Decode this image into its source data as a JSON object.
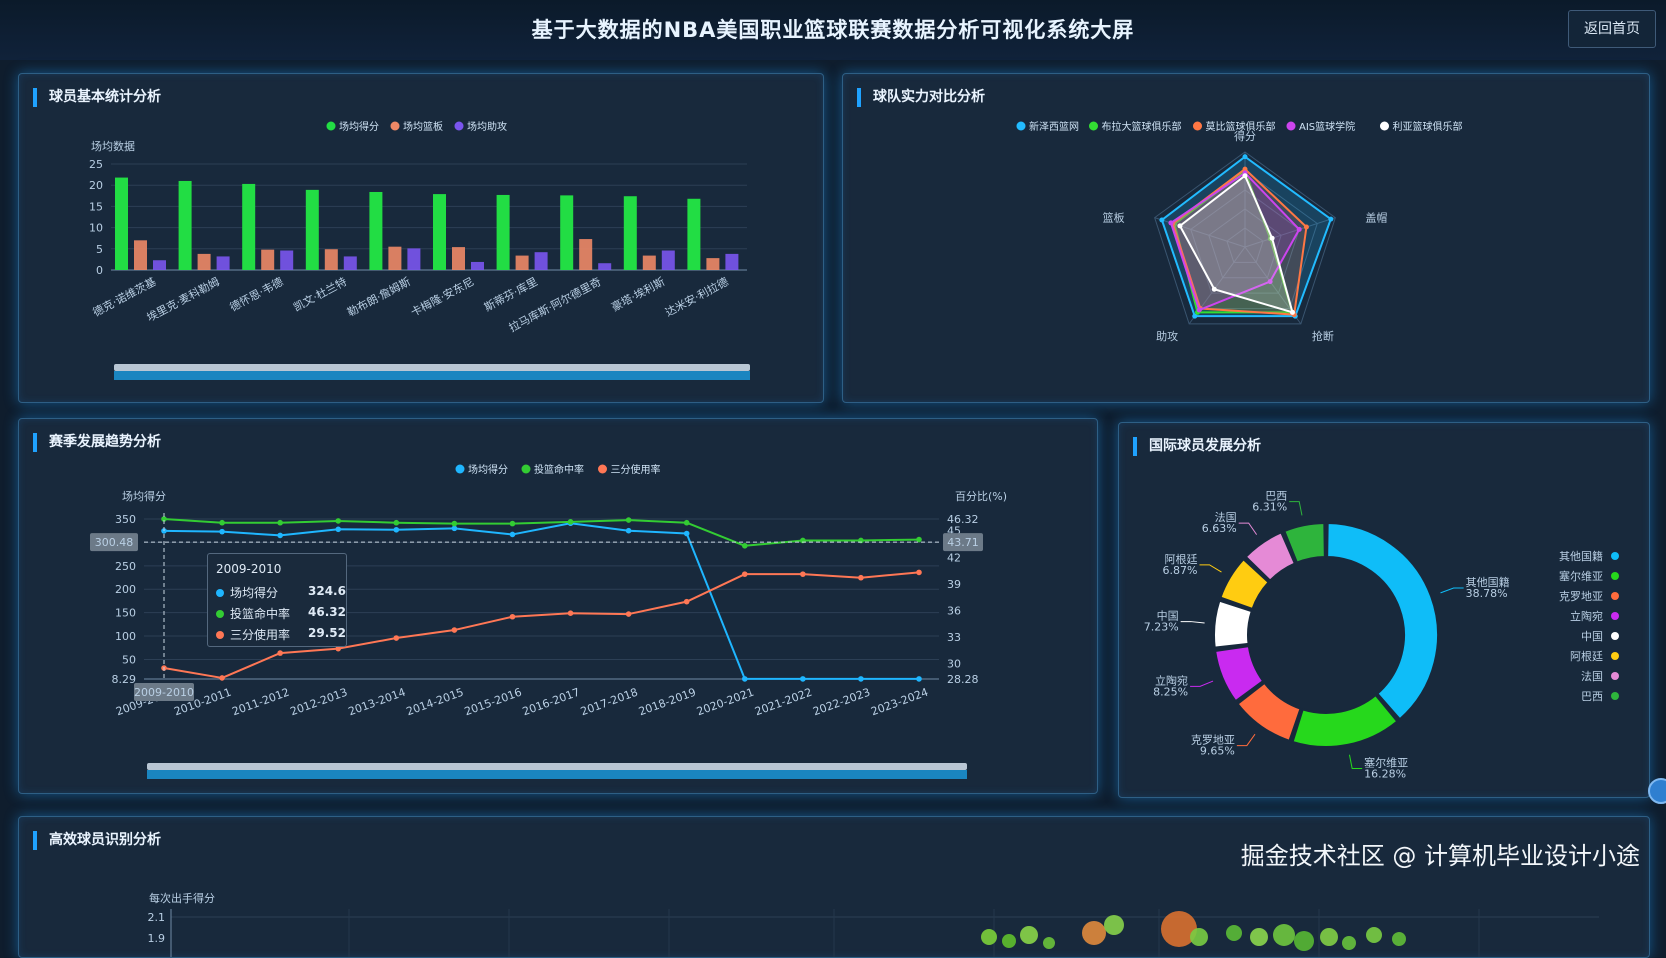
{
  "header": {
    "title": "基于大数据的NBA美国职业篮球联赛数据分析可视化系统大屏",
    "back_label": "返回首页"
  },
  "panels": {
    "player_stats": {
      "title": "球员基本统计分析"
    },
    "team_compare": {
      "title": "球队实力对比分析"
    },
    "season_trend": {
      "title": "赛季发展趋势分析"
    },
    "international": {
      "title": "国际球员发展分析"
    },
    "efficient": {
      "title": "高效球员识别分析"
    }
  },
  "chart_data": [
    {
      "type": "bar",
      "ylabel": "场均数据",
      "ylim": [
        0,
        25
      ],
      "yticks": [
        0,
        5,
        10,
        15,
        20,
        25
      ],
      "categories": [
        "德克·诺维茨基",
        "埃里克·麦科勒姆",
        "德怀恩·韦德",
        "凯文·杜兰特",
        "勒布朗·詹姆斯",
        "卡梅隆·安东尼",
        "斯蒂芬·库里",
        "拉马库斯·阿尔德里奇",
        "豪塔·埃利斯",
        "达米安·利拉德"
      ],
      "series": [
        {
          "name": "场均得分",
          "color": "#22dd44",
          "values": [
            21.8,
            21.0,
            20.3,
            18.9,
            18.4,
            17.9,
            17.7,
            17.6,
            17.4,
            16.8
          ]
        },
        {
          "name": "场均篮板",
          "color": "#ee8866",
          "values": [
            7.0,
            3.8,
            4.8,
            4.9,
            5.5,
            5.4,
            3.4,
            7.3,
            3.4,
            2.8
          ]
        },
        {
          "name": "场均助攻",
          "color": "#7a55ee",
          "values": [
            2.3,
            3.2,
            4.6,
            3.2,
            5.1,
            1.9,
            4.2,
            1.6,
            4.6,
            3.8
          ]
        }
      ]
    },
    {
      "type": "radar",
      "indicators": [
        "得分",
        "盖帽",
        "抢断",
        "助攻",
        "篮板"
      ],
      "series": [
        {
          "name": "新泽西篮网",
          "color": "#22bbff",
          "values": [
            0.95,
            0.95,
            0.9,
            0.9,
            0.92
          ]
        },
        {
          "name": "布拉大篮球俱乐部",
          "color": "#33dd33",
          "values": [
            0.8,
            0.28,
            0.85,
            0.85,
            0.78
          ]
        },
        {
          "name": "莫比篮球俱乐部",
          "color": "#ff7744",
          "values": [
            0.82,
            0.68,
            0.88,
            0.8,
            0.8
          ]
        },
        {
          "name": "AIS篮球学院",
          "color": "#cc44ee",
          "values": [
            0.78,
            0.6,
            0.45,
            0.82,
            0.82
          ]
        },
        {
          "name": "利亚篮球俱乐部",
          "color": "#ffffff",
          "values": [
            0.75,
            0.3,
            0.85,
            0.55,
            0.72
          ]
        }
      ]
    },
    {
      "type": "line",
      "ylabel": "场均得分",
      "y2label": "百分比(%)",
      "ylim": [
        8.29,
        350
      ],
      "yticks": [
        "350",
        "300",
        "250",
        "200",
        "150",
        "100",
        "50",
        "8.29"
      ],
      "y2lim": [
        28.28,
        46.32
      ],
      "y2ticks": [
        "46.32",
        "45",
        "42",
        "39",
        "36",
        "33",
        "30",
        "28.28"
      ],
      "categories": [
        "2009-2010",
        "2010-2011",
        "2011-2012",
        "2012-2013",
        "2013-2014",
        "2014-2015",
        "2015-2016",
        "2016-2017",
        "2017-2018",
        "2018-2019",
        "2020-2021",
        "2021-2022",
        "2022-2023",
        "2023-2024"
      ],
      "series": [
        {
          "name": "场均得分",
          "axis": "left",
          "color": "#1fb6ff",
          "values": [
            324.6,
            323,
            315,
            328,
            327,
            330,
            317,
            341,
            325,
            319,
            8.5,
            8.5,
            8.5,
            8.5
          ]
        },
        {
          "name": "投篮命中率",
          "axis": "right",
          "color": "#33cc33",
          "values": [
            46.32,
            45.9,
            45.9,
            46.1,
            45.9,
            45.8,
            45.8,
            46.0,
            46.2,
            45.9,
            43.3,
            43.9,
            43.9,
            44.0
          ]
        },
        {
          "name": "三分使用率",
          "axis": "right",
          "color": "#ff7755",
          "values": [
            29.52,
            28.4,
            31.2,
            31.7,
            32.9,
            33.8,
            35.3,
            35.7,
            35.6,
            37.0,
            40.1,
            40.1,
            39.7,
            40.3
          ]
        }
      ],
      "crosshair": {
        "left_value": "300.48",
        "right_value": "43.71",
        "category": "2009-2010"
      },
      "tooltip": {
        "title": "2009-2010",
        "rows": [
          {
            "name": "场均得分",
            "value": "324.6"
          },
          {
            "name": "投篮命中率",
            "value": "46.32"
          },
          {
            "name": "三分使用率",
            "value": "29.52"
          }
        ]
      }
    },
    {
      "type": "pie",
      "series": [
        {
          "name": "其他国籍",
          "value": 38.78,
          "label": "38.78%",
          "color": "#0fbdf8"
        },
        {
          "name": "塞尔维亚",
          "value": 16.28,
          "label": "16.28%",
          "color": "#26d81c"
        },
        {
          "name": "克罗地亚",
          "value": 9.65,
          "label": "9.65%",
          "color": "#ff6b3d"
        },
        {
          "name": "立陶宛",
          "value": 8.25,
          "label": "8.25%",
          "color": "#c92af0"
        },
        {
          "name": "中国",
          "value": 7.23,
          "label": "7.23%",
          "color": "#ffffff"
        },
        {
          "name": "阿根廷",
          "value": 6.87,
          "label": "6.87%",
          "color": "#ffcc11"
        },
        {
          "name": "法国",
          "value": 6.63,
          "label": "6.63%",
          "color": "#e58ad6"
        },
        {
          "name": "巴西",
          "value": 6.31,
          "label": "6.31%",
          "color": "#2eb43c"
        }
      ]
    },
    {
      "type": "scatter",
      "ylabel": "每次出手得分",
      "yticks": [
        "2.1",
        "1.9"
      ]
    }
  ],
  "watermark": "掘金技术社区 @ 计算机毕业设计小途"
}
